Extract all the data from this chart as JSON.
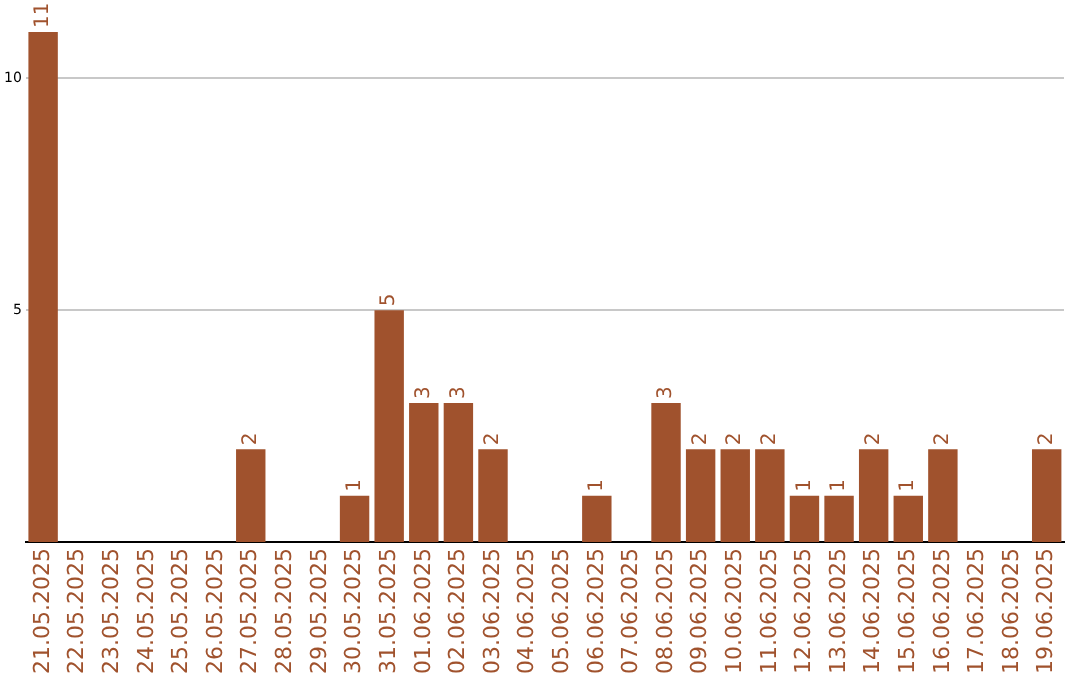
{
  "chart_data": {
    "type": "bar",
    "categories": [
      "21.05.2025",
      "22.05.2025",
      "23.05.2025",
      "24.05.2025",
      "25.05.2025",
      "26.05.2025",
      "27.05.2025",
      "28.05.2025",
      "29.05.2025",
      "30.05.2025",
      "31.05.2025",
      "01.06.2025",
      "02.06.2025",
      "03.06.2025",
      "04.06.2025",
      "05.06.2025",
      "06.06.2025",
      "07.06.2025",
      "08.06.2025",
      "09.06.2025",
      "10.06.2025",
      "11.06.2025",
      "12.06.2025",
      "13.06.2025",
      "14.06.2025",
      "15.06.2025",
      "16.06.2025",
      "17.06.2025",
      "18.06.2025",
      "19.06.2025"
    ],
    "values": [
      11,
      0,
      0,
      0,
      0,
      0,
      2,
      0,
      0,
      1,
      5,
      3,
      3,
      2,
      0,
      0,
      1,
      0,
      3,
      2,
      2,
      2,
      1,
      1,
      2,
      1,
      2,
      0,
      0,
      2
    ],
    "value_labels": [
      "11",
      null,
      null,
      null,
      null,
      null,
      "2",
      null,
      null,
      "1",
      "5",
      "3",
      "3",
      "2",
      null,
      null,
      "1",
      null,
      "3",
      "2",
      "2",
      "2",
      "1",
      "1",
      "2",
      "1",
      "2",
      null,
      null,
      "2"
    ],
    "color": "#a0522d",
    "ylim": [
      0,
      11
    ],
    "yticks": [
      5,
      10
    ],
    "grid": "y",
    "legend": false
  }
}
